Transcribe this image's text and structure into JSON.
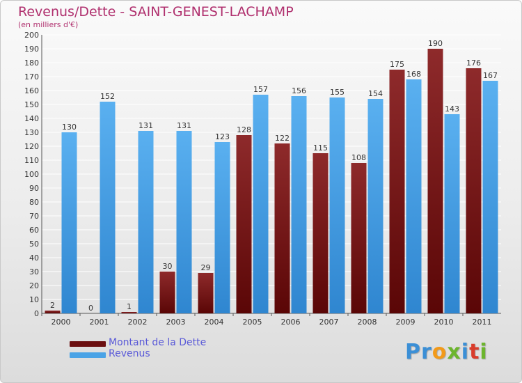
{
  "header": {
    "title": "Revenus/Dette - SAINT-GENEST-LACHAMP",
    "subtitle": "(en milliers d'€)"
  },
  "colors": {
    "dette": "#6b0f10",
    "revenus": "#4aa3e6",
    "title": "#b0306e",
    "legend_text": "#5a5ad8"
  },
  "logo": {
    "text": "Proxiti",
    "letters": [
      {
        "char": "P",
        "color": "#3b8fd6"
      },
      {
        "char": "r",
        "color": "#3b8fd6"
      },
      {
        "char": "o",
        "color": "#f29a1a"
      },
      {
        "char": "x",
        "color": "#6cb52d"
      },
      {
        "char": "i",
        "color": "#3b8fd6"
      },
      {
        "char": "t",
        "color": "#d93c2b"
      },
      {
        "char": "i",
        "color": "#6cb52d"
      }
    ]
  },
  "legend": [
    {
      "label": "Montant de la Dette",
      "color_key": "dette"
    },
    {
      "label": "Revenus",
      "color_key": "revenus"
    }
  ],
  "chart_data": {
    "type": "bar",
    "title": "Revenus/Dette - SAINT-GENEST-LACHAMP",
    "subtitle": "(en milliers d'€)",
    "categories": [
      "2000",
      "2001",
      "2002",
      "2003",
      "2004",
      "2005",
      "2006",
      "2007",
      "2008",
      "2009",
      "2010",
      "2011"
    ],
    "series": [
      {
        "name": "Montant de la Dette",
        "values": [
          2,
          0,
          1,
          30,
          29,
          128,
          122,
          115,
          108,
          175,
          190,
          176
        ]
      },
      {
        "name": "Revenus",
        "values": [
          130,
          152,
          131,
          131,
          123,
          157,
          156,
          155,
          154,
          168,
          143,
          167
        ]
      }
    ],
    "ylim": [
      0,
      200
    ],
    "ytick_step": 10,
    "grid": true,
    "legend_position": "bottom-left"
  }
}
